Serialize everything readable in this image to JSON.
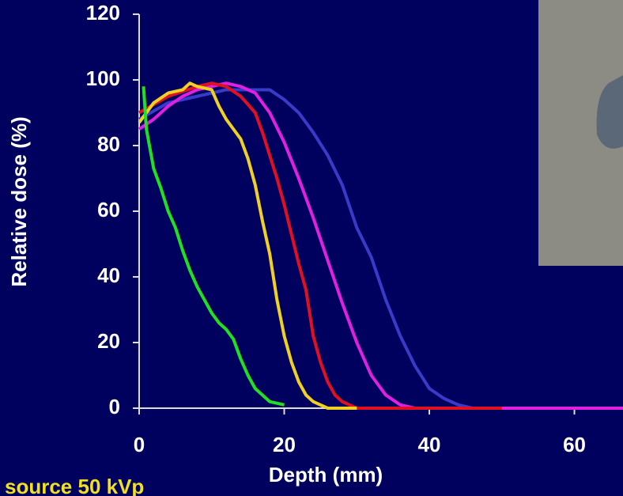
{
  "chart_data": {
    "type": "line",
    "x_label": "Depth (mm)",
    "y_label": "Relative dose (%)",
    "annotation": "source 50 kVp",
    "xlim": [
      0,
      66.7
    ],
    "xticks": [
      0,
      20,
      40,
      60
    ],
    "ylim": [
      0,
      120
    ],
    "yticks": [
      0,
      20,
      40,
      60,
      80,
      100,
      120
    ],
    "series": [
      {
        "color": "#3a3ac8",
        "x": [
          0,
          4,
          8,
          12,
          16,
          18,
          20,
          22,
          24,
          26,
          28,
          30,
          32,
          34,
          36,
          38,
          40,
          42,
          44,
          46,
          66.7
        ],
        "values": [
          88,
          93,
          95,
          97,
          97,
          97,
          94,
          90,
          84,
          77,
          68,
          55,
          46,
          33,
          22,
          13,
          6,
          3,
          1,
          0,
          0
        ]
      },
      {
        "color": "#e020e0",
        "x": [
          0,
          2,
          4,
          6,
          8,
          10,
          12,
          14,
          16,
          18,
          20,
          22,
          24,
          26,
          28,
          30,
          32,
          34,
          36,
          38,
          66.7
        ],
        "values": [
          85,
          88,
          92,
          95,
          97,
          98,
          99,
          98,
          96,
          90,
          81,
          70,
          58,
          45,
          32,
          20,
          10,
          4,
          1,
          0,
          0
        ]
      },
      {
        "color": "#e01020",
        "x": [
          0,
          4,
          8,
          10,
          12,
          14,
          16,
          17,
          18,
          19,
          20,
          21,
          22,
          23,
          24,
          25,
          26,
          27,
          28,
          30,
          50
        ],
        "values": [
          90,
          95,
          98,
          99,
          98,
          95,
          90,
          84,
          77,
          70,
          62,
          53,
          44,
          36,
          22,
          14,
          8,
          4,
          2,
          0,
          0
        ]
      },
      {
        "color": "#f0d020",
        "x": [
          0,
          2,
          4,
          6,
          7,
          8,
          10,
          11,
          12,
          13,
          14,
          15,
          16,
          17,
          18,
          19,
          20,
          21,
          22,
          23,
          24,
          26,
          30
        ],
        "values": [
          87,
          93,
          96,
          97,
          99,
          98,
          97,
          92,
          88,
          85,
          82,
          76,
          68,
          57,
          47,
          33,
          22,
          14,
          8,
          4,
          2,
          0,
          0
        ]
      },
      {
        "color": "#20e020",
        "x": [
          0.6,
          1,
          2,
          3,
          4,
          5,
          6,
          7,
          8,
          9,
          10,
          11,
          12,
          13,
          14,
          15,
          16,
          17,
          18,
          20
        ],
        "values": [
          98,
          85,
          73,
          67,
          60,
          55,
          48,
          42,
          37,
          33,
          29,
          26,
          24,
          21,
          15,
          10,
          6,
          4,
          2,
          1
        ]
      }
    ]
  }
}
